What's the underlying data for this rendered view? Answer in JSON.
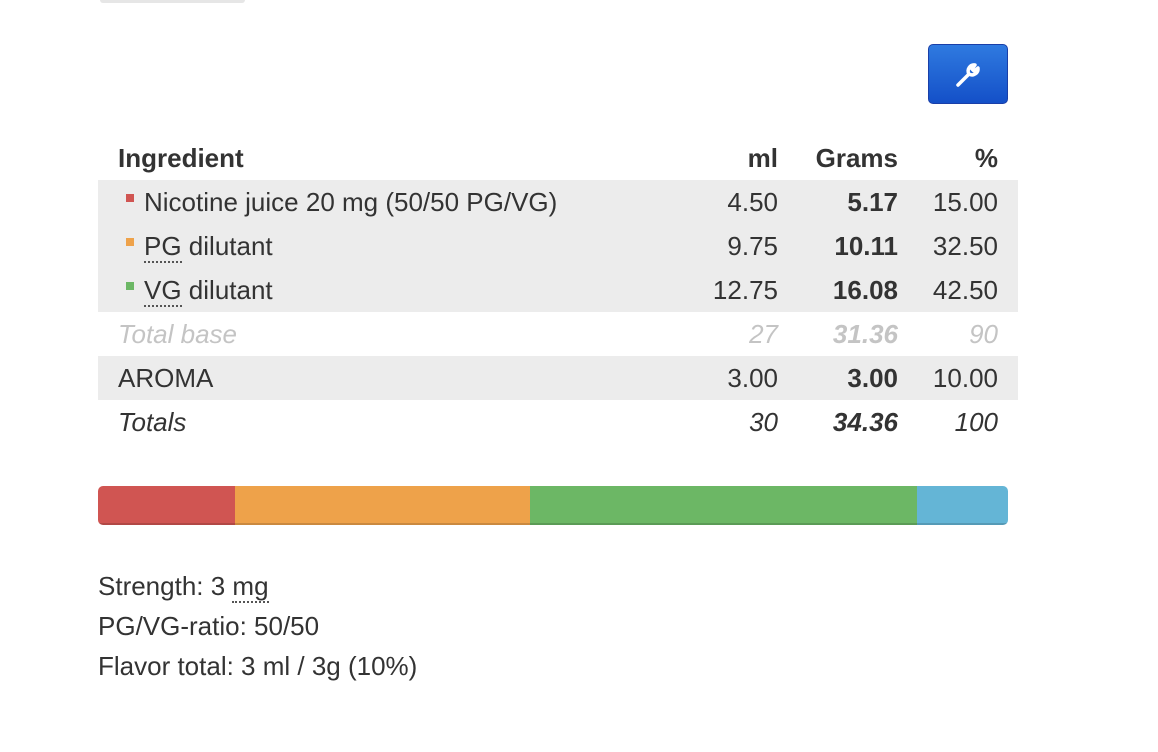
{
  "table": {
    "header": [
      "Ingredient",
      "ml",
      "Grams",
      "%"
    ],
    "ingredients": [
      {
        "name": "Nicotine juice 20 mg (50/50 PG/VG)",
        "ml": "4.50",
        "grams": "5.17",
        "percent": "15.00",
        "color": "#d05552"
      },
      {
        "abbr": "PG",
        "name": " dilutant",
        "ml": "9.75",
        "grams": "10.11",
        "percent": "32.50",
        "color": "#eea24a"
      },
      {
        "abbr": "VG",
        "name": " dilutant",
        "ml": "12.75",
        "grams": "16.08",
        "percent": "42.50",
        "color": "#6cb765"
      }
    ],
    "total_base": {
      "name": "Total base",
      "ml": "27",
      "grams": "31.36",
      "percent": "90"
    },
    "aroma": {
      "name": "AROMA",
      "ml": "3.00",
      "grams": "3.00",
      "percent": "10.00",
      "color": "#64b5d6"
    },
    "totals": {
      "name": "Totals",
      "ml": "30",
      "grams": "34.36",
      "percent": "100"
    }
  },
  "summary": {
    "strength": {
      "label": "Strength: 3 ",
      "unit": "mg"
    },
    "ratio": "PG/VG-ratio: 50/50",
    "flavor": "Flavor total: 3 ml / 3g (10%)"
  }
}
